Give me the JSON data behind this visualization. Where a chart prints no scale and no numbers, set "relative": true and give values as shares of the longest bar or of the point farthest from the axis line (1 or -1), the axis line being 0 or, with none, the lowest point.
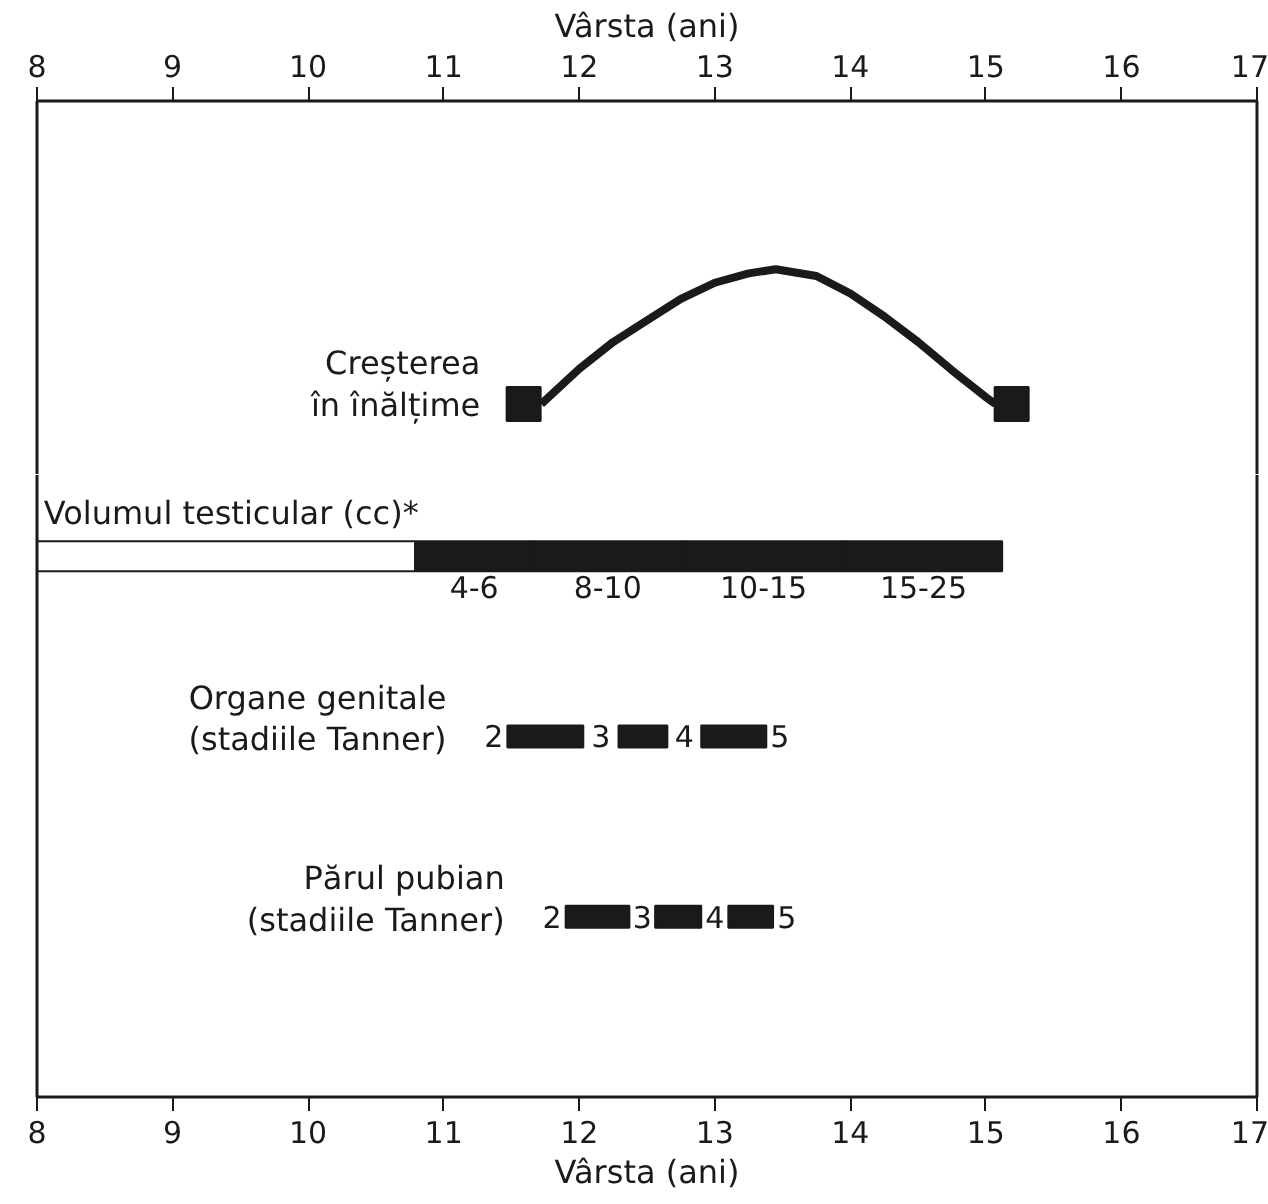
{
  "chart_data": [
    {
      "type": "line",
      "relative": true,
      "legend": false,
      "grid": false,
      "xlabel": "Vârsta (ani)",
      "xlim": [
        8,
        17
      ],
      "xticks": [
        8,
        9,
        10,
        11,
        12,
        13,
        14,
        15,
        16,
        17
      ],
      "series": [
        {
          "name": "Creșterea\nîn înălțime",
          "color": "#1a1a1a",
          "marker": "none",
          "line_style": "solid",
          "x": [
            11.72,
            12.0,
            12.25,
            12.5,
            12.75,
            13.0,
            13.25,
            13.45,
            13.75,
            14.0,
            14.25,
            14.5,
            14.75,
            15.0,
            15.07
          ],
          "values": [
            0,
            0.26,
            0.46,
            0.62,
            0.78,
            0.9,
            0.97,
            1,
            0.95,
            0.82,
            0.65,
            0.46,
            0.25,
            0.05,
            0
          ]
        },
        {
          "type": "scatter",
          "color": "#1a1a1a",
          "marker": "square",
          "x": [
            11.59,
            15.19
          ],
          "values": [
            0,
            0
          ]
        }
      ]
    },
    {
      "type": "bar",
      "orientation": "horizontal",
      "legend": false,
      "grid": false,
      "xlabel": "Vârsta (ani)",
      "xlim": [
        8,
        17
      ],
      "xticks": [
        8,
        9,
        10,
        11,
        12,
        13,
        14,
        15,
        16,
        17
      ],
      "categories": [
        "Volumul testicular (cc)*",
        "Organe genitale\n(stadiile Tanner)",
        "Părul pubian\n(stadiile Tanner)"
      ],
      "series": [
        {
          "color": "#ffffff",
          "values": [
            2.79,
            null,
            null
          ],
          "base": [
            8,
            null,
            null
          ]
        },
        {
          "color": "#1a1a1a",
          "values": [
            0.87,
            0.56,
            0.47
          ],
          "base": [
            10.79,
            11.47,
            11.9
          ],
          "value_labels": [
            "4-6",
            null,
            null
          ]
        },
        {
          "color": "#1a1a1a",
          "values": [
            1.1,
            0.36,
            0.34
          ],
          "base": [
            11.66,
            12.29,
            12.56
          ],
          "value_labels": [
            "8-10",
            null,
            null
          ]
        },
        {
          "color": "#1a1a1a",
          "values": [
            1.2,
            0.48,
            0.33
          ],
          "base": [
            12.76,
            12.9,
            13.1
          ],
          "value_labels": [
            "10-15",
            null,
            null
          ]
        },
        {
          "color": "#1a1a1a",
          "values": [
            1.16,
            null,
            null
          ],
          "base": [
            13.96,
            null,
            null
          ],
          "value_labels": [
            "15-25",
            null,
            null
          ]
        }
      ],
      "annotations": [
        "2",
        "3",
        "4",
        "5",
        "2",
        "3",
        "4",
        "5"
      ]
    }
  ]
}
